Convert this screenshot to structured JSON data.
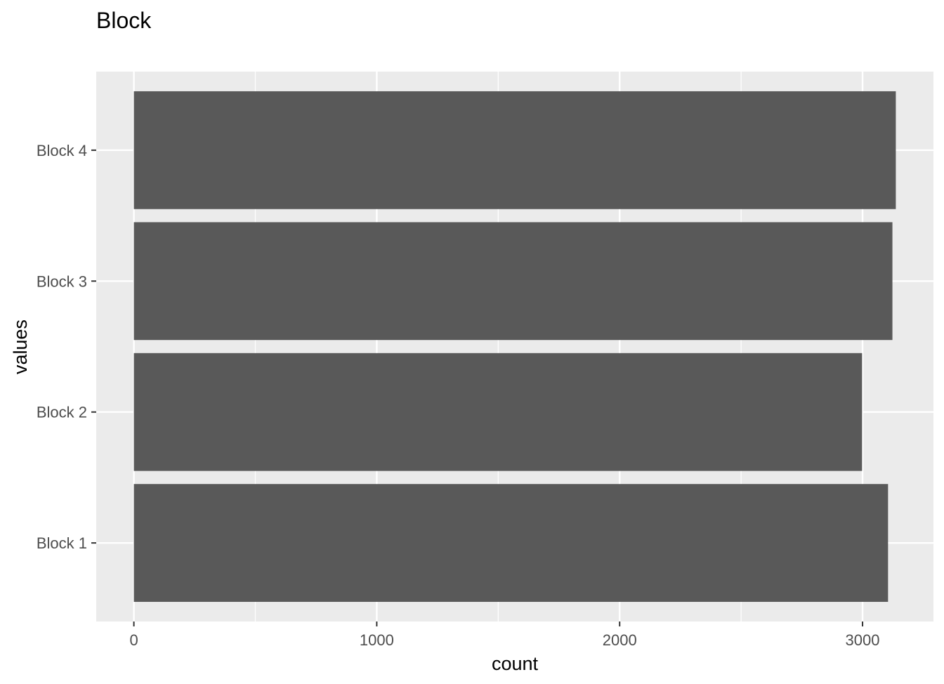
{
  "chart_data": {
    "type": "bar",
    "orientation": "horizontal",
    "title": "Block",
    "xlabel": "count",
    "ylabel": "values",
    "categories": [
      "Block 1",
      "Block 2",
      "Block 3",
      "Block 4"
    ],
    "values": [
      3105,
      2998,
      3123,
      3137
    ],
    "xlim": [
      -155,
      3292
    ],
    "xticks": [
      0,
      1000,
      2000,
      3000
    ],
    "xtick_labels": [
      "0",
      "1000",
      "2000",
      "3000"
    ],
    "grid": true,
    "legend": "none",
    "colors": {
      "bar": "#595959",
      "panel": "#ebebeb",
      "grid": "#ffffff",
      "tick_text": "#4d4d4d",
      "tick_mark": "#333333"
    }
  }
}
